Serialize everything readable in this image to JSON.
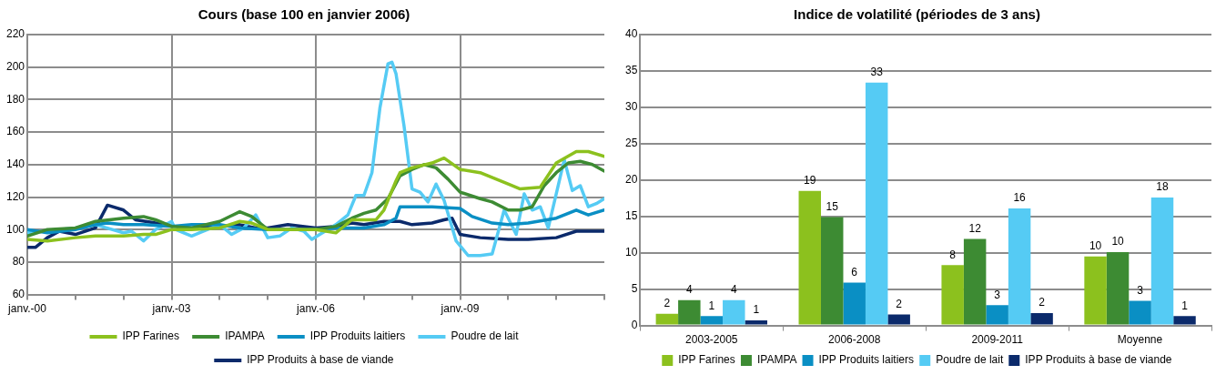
{
  "chart_data": [
    {
      "type": "line",
      "title": "Cours (base 100 en janvier 2006)",
      "legend": "bottom",
      "grid": true,
      "marker": "none",
      "line_style": "solid",
      "xlim": [
        "2000-01",
        "2012-01"
      ],
      "xticks": [
        {
          "value": "2000-01",
          "label": "janv.-00"
        },
        {
          "value": "2001-01",
          "label": null
        },
        {
          "value": "2002-01",
          "label": null
        },
        {
          "value": "2003-01",
          "label": "janv.-03"
        },
        {
          "value": "2004-01",
          "label": null
        },
        {
          "value": "2005-01",
          "label": null
        },
        {
          "value": "2006-01",
          "label": "janv.-06"
        },
        {
          "value": "2007-01",
          "label": null
        },
        {
          "value": "2008-01",
          "label": null
        },
        {
          "value": "2009-01",
          "label": "janv.-09"
        },
        {
          "value": "2010-01",
          "label": null
        },
        {
          "value": "2011-01",
          "label": null
        },
        {
          "value": "2012-01",
          "label": null
        }
      ],
      "ylim": [
        60,
        220
      ],
      "yticks": [
        60,
        80,
        100,
        120,
        140,
        160,
        180,
        200,
        220
      ],
      "series": [
        {
          "name": "IPP Farines",
          "color": "#8cc11e",
          "x": [
            "2000-01",
            "2000-06",
            "2001-01",
            "2001-06",
            "2002-01",
            "2002-06",
            "2002-09",
            "2003-01",
            "2003-06",
            "2004-01",
            "2004-06",
            "2004-09",
            "2005-01",
            "2005-06",
            "2006-01",
            "2006-06",
            "2006-10",
            "2007-01",
            "2007-04",
            "2007-06",
            "2007-09",
            "2007-10",
            "2008-01",
            "2008-06",
            "2008-09",
            "2009-01",
            "2009-06",
            "2010-01",
            "2010-04",
            "2010-09",
            "2011-01",
            "2011-06",
            "2011-09",
            "2012-01"
          ],
          "values": [
            94,
            93,
            95,
            96,
            96,
            97,
            97,
            100,
            100,
            101,
            105,
            104,
            100,
            100,
            100,
            98,
            106,
            106,
            106,
            112,
            130,
            135,
            138,
            141,
            144,
            137,
            135,
            128,
            125,
            126,
            141,
            148,
            148,
            145
          ]
        },
        {
          "name": "IPAMPA",
          "color": "#3d8b33",
          "x": [
            "2000-01",
            "2000-06",
            "2001-01",
            "2001-06",
            "2002-01",
            "2002-06",
            "2002-09",
            "2003-01",
            "2003-06",
            "2004-01",
            "2004-06",
            "2004-09",
            "2005-01",
            "2005-06",
            "2006-01",
            "2006-06",
            "2006-10",
            "2007-01",
            "2007-04",
            "2007-07",
            "2007-10",
            "2008-01",
            "2008-04",
            "2008-07",
            "2008-10",
            "2009-01",
            "2009-06",
            "2009-09",
            "2010-01",
            "2010-04",
            "2010-07",
            "2010-10",
            "2011-01",
            "2011-04",
            "2011-07",
            "2011-10",
            "2012-01"
          ],
          "values": [
            96,
            100,
            101,
            105,
            107,
            108,
            106,
            102,
            101,
            105,
            111,
            108,
            100,
            100,
            100,
            102,
            107,
            110,
            112,
            119,
            133,
            137,
            140,
            138,
            131,
            123,
            119,
            117,
            112,
            112,
            114,
            127,
            135,
            141,
            142,
            140,
            136
          ]
        },
        {
          "name": "IPP Produits laitiers",
          "color": "#0a8fc4",
          "x": [
            "2000-01",
            "2000-06",
            "2001-01",
            "2001-06",
            "2001-09",
            "2002-01",
            "2002-06",
            "2003-01",
            "2003-06",
            "2004-01",
            "2004-06",
            "2005-01",
            "2006-01",
            "2006-06",
            "2007-01",
            "2007-06",
            "2007-09",
            "2007-10",
            "2008-01",
            "2008-06",
            "2009-01",
            "2009-04",
            "2009-09",
            "2010-01",
            "2010-06",
            "2011-01",
            "2011-06",
            "2011-09",
            "2012-01"
          ],
          "values": [
            100,
            98,
            100,
            103,
            104,
            103,
            103,
            102,
            103,
            103,
            101,
            100,
            100,
            101,
            101,
            103,
            107,
            114,
            114,
            114,
            113,
            108,
            104,
            103,
            104,
            107,
            112,
            109,
            112
          ]
        },
        {
          "name": "Poudre de lait",
          "color": "#55cbf4",
          "x": [
            "2000-01",
            "2001-01",
            "2001-06",
            "2002-01",
            "2002-03",
            "2002-06",
            "2002-09",
            "2003-01",
            "2003-02",
            "2003-06",
            "2003-09",
            "2004-01",
            "2004-04",
            "2004-07",
            "2004-10",
            "2005-01",
            "2005-04",
            "2005-07",
            "2005-10",
            "2005-12",
            "2006-02",
            "2006-06",
            "2006-09",
            "2006-11",
            "2007-01",
            "2007-03",
            "2007-05",
            "2007-07",
            "2007-08",
            "2007-09",
            "2007-11",
            "2008-01",
            "2008-03",
            "2008-05",
            "2008-07",
            "2008-09",
            "2008-12",
            "2009-03",
            "2009-06",
            "2009-09",
            "2009-12",
            "2010-03",
            "2010-05",
            "2010-07",
            "2010-09",
            "2010-11",
            "2011-03",
            "2011-05",
            "2011-07",
            "2011-09",
            "2011-11",
            "2012-01"
          ],
          "values": [
            98,
            101,
            103,
            98,
            99,
            93,
            100,
            105,
            100,
            96,
            99,
            103,
            97,
            101,
            109,
            95,
            96,
            101,
            99,
            94,
            97,
            103,
            109,
            121,
            121,
            135,
            175,
            202,
            203,
            196,
            164,
            125,
            123,
            117,
            128,
            118,
            93,
            84,
            84,
            85,
            112,
            97,
            122,
            112,
            114,
            101,
            143,
            124,
            127,
            114,
            116,
            119
          ]
        },
        {
          "name": "IPP Produits à base de viande",
          "color": "#0b2a6b",
          "x": [
            "2000-01",
            "2000-03",
            "2000-06",
            "2000-09",
            "2001-01",
            "2001-06",
            "2001-09",
            "2002-01",
            "2002-04",
            "2002-09",
            "2003-01",
            "2003-06",
            "2004-01",
            "2004-06",
            "2004-10",
            "2005-01",
            "2005-06",
            "2006-01",
            "2006-06",
            "2006-10",
            "2007-01",
            "2007-06",
            "2007-10",
            "2008-01",
            "2008-06",
            "2008-09",
            "2008-11",
            "2009-01",
            "2009-06",
            "2010-01",
            "2010-06",
            "2011-01",
            "2011-06",
            "2012-01"
          ],
          "values": [
            89,
            89,
            95,
            99,
            97,
            101,
            115,
            112,
            106,
            104,
            102,
            101,
            102,
            103,
            101,
            101,
            103,
            101,
            102,
            104,
            103,
            105,
            105,
            103,
            104,
            106,
            107,
            97,
            95,
            94,
            94,
            95,
            99,
            99
          ]
        }
      ]
    },
    {
      "type": "bar",
      "title": "Indice de volatilité (périodes de 3 ans)",
      "legend": "bottom",
      "grid": "y",
      "categories": [
        "2003-2005",
        "2006-2008",
        "2009-2011",
        "Moyenne"
      ],
      "ylim": [
        0,
        40
      ],
      "yticks": [
        0,
        5,
        10,
        15,
        20,
        25,
        30,
        35,
        40
      ],
      "series": [
        {
          "name": "IPP Farines",
          "color": "#8cc11e",
          "values": [
            1.6,
            18.5,
            8.3,
            9.5
          ],
          "value_labels": [
            "2",
            "19",
            "8",
            "10"
          ]
        },
        {
          "name": "IPAMPA",
          "color": "#3d8b33",
          "values": [
            3.5,
            14.9,
            11.9,
            10.1
          ],
          "value_labels": [
            "4",
            "15",
            "12",
            "10"
          ]
        },
        {
          "name": "IPP Produits laitiers",
          "color": "#0a8fc4",
          "values": [
            1.3,
            5.9,
            2.8,
            3.4
          ],
          "value_labels": [
            "1",
            "6",
            "3",
            "3"
          ]
        },
        {
          "name": "Poudre de lait",
          "color": "#55cbf4",
          "values": [
            3.5,
            33.4,
            16.1,
            17.6
          ],
          "value_labels": [
            "4",
            "33",
            "16",
            "18"
          ]
        },
        {
          "name": "IPP Produits à base de viande",
          "color": "#0b2a6b",
          "values": [
            0.7,
            1.5,
            1.7,
            1.3
          ],
          "value_labels": [
            "1",
            "2",
            "2",
            "1"
          ]
        }
      ]
    }
  ]
}
